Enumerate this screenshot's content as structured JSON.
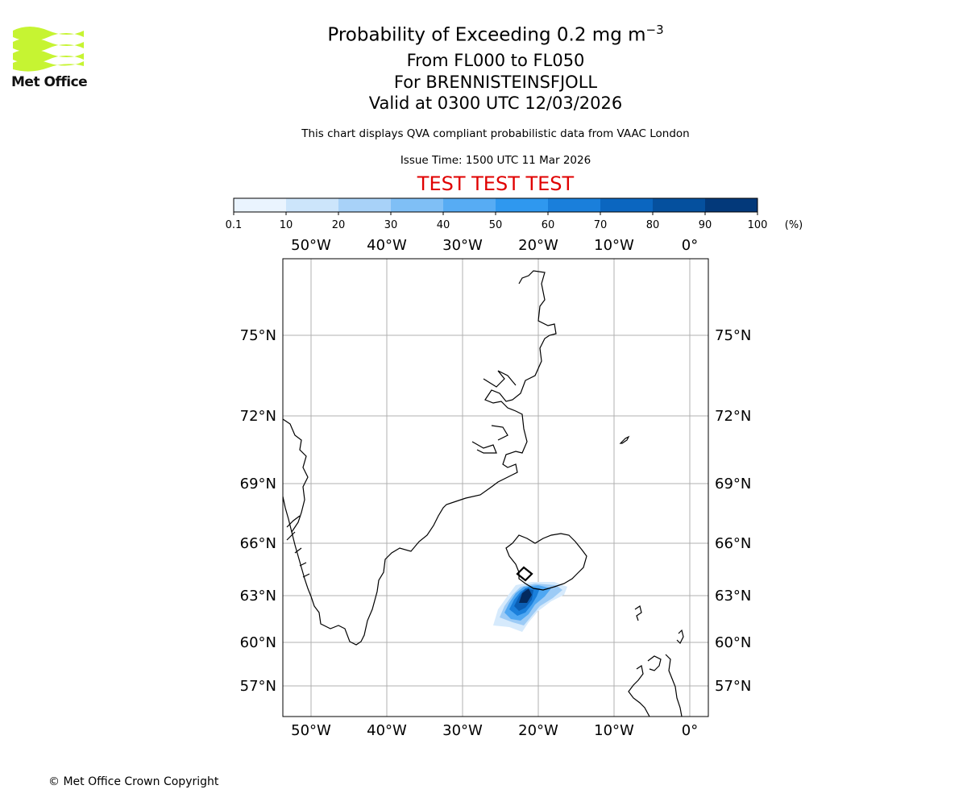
{
  "header": {
    "title_prefix": "Probability of Exceeding 0.2 mg m",
    "title_exponent": "−3",
    "level_range": "From FL000 to FL050",
    "volcano": "For BRENNISTEINSFJOLL",
    "valid_time": "Valid at 0300 UTC 12/03/2026",
    "subtitle": "This chart displays QVA compliant probabilistic data from VAAC London",
    "issue_time": "Issue Time: 1500 UTC 11 Mar 2026",
    "test_banner": "TEST TEST TEST"
  },
  "logo": {
    "text": "Met Office",
    "color": "#c6f432"
  },
  "colorbar": {
    "ticks": [
      "0.1",
      "10",
      "20",
      "30",
      "40",
      "50",
      "60",
      "70",
      "80",
      "90",
      "100"
    ],
    "unit": "(%)",
    "colors": [
      "#eaf4fe",
      "#cce5fb",
      "#a8d2f8",
      "#7fbff6",
      "#57acf4",
      "#2f98ef",
      "#1a7fdb",
      "#0b66c0",
      "#05509e",
      "#03397a",
      "#022552"
    ]
  },
  "map": {
    "lon_labels": [
      "50°W",
      "40°W",
      "30°W",
      "20°W",
      "10°W",
      "0°"
    ],
    "lat_labels": [
      "75°N",
      "72°N",
      "69°N",
      "66°N",
      "63°N",
      "60°N",
      "57°N"
    ],
    "grid_color": "#b0b0b0"
  },
  "footer": {
    "copyright": "© Met Office Crown Copyright"
  }
}
